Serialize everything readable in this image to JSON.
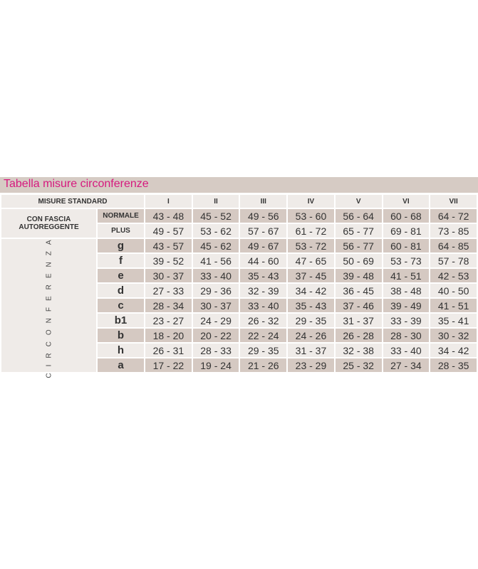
{
  "title": "Tabella misure circonferenze",
  "header": {
    "label": "MISURE STANDARD",
    "sizes": [
      "I",
      "II",
      "III",
      "IV",
      "V",
      "VI",
      "VII"
    ]
  },
  "fascia": {
    "label_line1": "CON FASCIA",
    "label_line2": "AUTOREGGENTE",
    "rows": [
      {
        "label": "NORMALE",
        "values": [
          "43  -  48",
          "45 - 52",
          "49 - 56",
          "53 - 60",
          "56 - 64",
          "60 - 68",
          "64 - 72"
        ]
      },
      {
        "label": "PLUS",
        "values": [
          "49 - 57",
          "53 - 62",
          "57 - 67",
          "61 - 72",
          "65 - 77",
          "69 - 81",
          "73 - 85"
        ]
      }
    ]
  },
  "circonferenza": {
    "label": "CIRCONFERENZA",
    "rows": [
      {
        "label": "g",
        "values": [
          "43 - 57",
          "45 - 62",
          "49 - 67",
          "53 - 72",
          "56 - 77",
          "60 - 81",
          "64 - 85"
        ]
      },
      {
        "label": "f",
        "values": [
          "39 - 52",
          "41 - 56",
          "44 - 60",
          "47 - 65",
          "50 - 69",
          "53 - 73",
          "57 - 78"
        ]
      },
      {
        "label": "e",
        "values": [
          "30 - 37",
          "33 - 40",
          "35 - 43",
          "37 - 45",
          "39 - 48",
          "41 - 51",
          "42 - 53"
        ]
      },
      {
        "label": "d",
        "values": [
          "27 - 33",
          "29 - 36",
          "32 - 39",
          "34 - 42",
          "36 - 45",
          "38 - 48",
          "40 - 50"
        ]
      },
      {
        "label": "c",
        "values": [
          "28 - 34",
          "30 - 37",
          "33 - 40",
          "35 - 43",
          "37 - 46",
          "39 - 49",
          "41 - 51"
        ]
      },
      {
        "label": "b1",
        "values": [
          "23 - 27",
          "24 - 29",
          "26 - 32",
          "29 - 35",
          "31 - 37",
          "33 - 39",
          "35 - 41"
        ]
      },
      {
        "label": "b",
        "values": [
          "18 - 20",
          "20 - 22",
          "22 - 24",
          "24 - 26",
          "26 - 28",
          "28 - 30",
          "30 - 32"
        ]
      },
      {
        "label": "h",
        "values": [
          "26 - 31",
          "28 - 33",
          "29 - 35",
          "31 - 37",
          "32 - 38",
          "33 - 40",
          "34 - 42"
        ]
      },
      {
        "label": "a",
        "values": [
          "17 - 22",
          "19 - 24",
          "21 - 26",
          "23 - 29",
          "25 - 32",
          "27 - 34",
          "28 - 35"
        ]
      }
    ]
  },
  "colors": {
    "title": "#d6197e",
    "dark_row": "#d5c9c2",
    "light_row": "#efebe8"
  }
}
